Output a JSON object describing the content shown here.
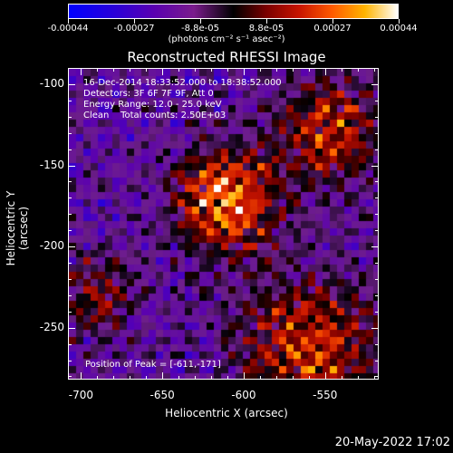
{
  "colorbar": {
    "tick_labels": [
      "-0.00044",
      "-0.00027",
      "-8.8e-05",
      "8.8e-05",
      "0.00027",
      "0.00044"
    ],
    "units": "(photons cm⁻² s⁻¹ asec⁻²)",
    "range": [
      -0.00044,
      0.00044
    ]
  },
  "plot": {
    "title": "Reconstructed RHESSI Image",
    "xlabel": "Heliocentric X (arcsec)",
    "ylabel": "Heliocentric Y (arcsec)",
    "x_ticks": [
      "-700",
      "-650",
      "-600",
      "-550"
    ],
    "y_ticks": [
      "-100",
      "-150",
      "-200",
      "-250"
    ],
    "xlim": [
      -708,
      -517
    ],
    "ylim": [
      -282,
      -90
    ],
    "info_lines": [
      "16-Dec-2014 18:33:52.000 to 18:38:52.000",
      "Detectors: 3F 6F 7F 9F, Att 0",
      "Energy Range: 12.0 - 25.0 keV",
      "Clean    Total counts: 2.50E+03"
    ],
    "peak_label": "Position of Peak = [-611,-171]",
    "peak": [
      -611,
      -171
    ]
  },
  "footer": {
    "date": "20-May-2022 17:02"
  }
}
